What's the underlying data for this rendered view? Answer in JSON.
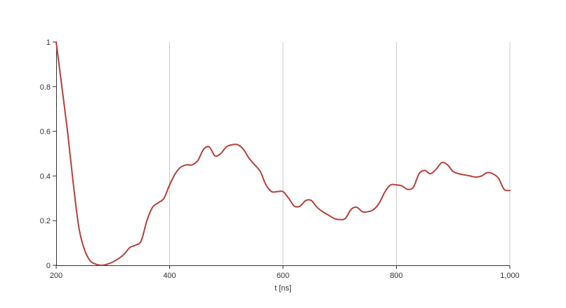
{
  "chart_data": {
    "type": "line",
    "xlabel": "t [ns]",
    "ylabel": "",
    "xlim": [
      200,
      1000
    ],
    "ylim": [
      0,
      1
    ],
    "x_ticks": [
      200,
      400,
      600,
      800,
      1000
    ],
    "x_tick_labels": [
      "200",
      "400",
      "600",
      "800",
      "1,000"
    ],
    "y_ticks": [
      0,
      0.2,
      0.4,
      0.6,
      0.8,
      1
    ],
    "y_tick_labels": [
      "0",
      "0.2",
      "0.4",
      "0.6",
      "0.8",
      "1"
    ],
    "grid": {
      "vertical": true,
      "horizontal": false
    },
    "legend": "none",
    "colors": {
      "line": "#b5403a",
      "grid": "#cccccc",
      "axis": "#333333"
    },
    "series": [
      {
        "x": [
          200,
          210,
          220,
          230,
          240,
          250,
          260,
          270,
          280,
          290,
          300,
          310,
          320,
          330,
          340,
          350,
          360,
          370,
          380,
          390,
          400,
          410,
          420,
          430,
          440,
          450,
          460,
          470,
          480,
          490,
          500,
          510,
          520,
          530,
          540,
          550,
          560,
          570,
          580,
          590,
          600,
          610,
          620,
          630,
          640,
          650,
          660,
          670,
          680,
          690,
          700,
          710,
          720,
          730,
          740,
          750,
          760,
          770,
          780,
          790,
          800,
          810,
          820,
          830,
          840,
          850,
          860,
          870,
          880,
          890,
          900,
          910,
          920,
          930,
          940,
          950,
          960,
          970,
          980,
          990,
          1000
        ],
        "y": [
          1.0,
          0.8,
          0.6,
          0.37,
          0.17,
          0.07,
          0.02,
          0.005,
          0.0,
          0.005,
          0.015,
          0.03,
          0.05,
          0.08,
          0.09,
          0.11,
          0.2,
          0.26,
          0.28,
          0.3,
          0.36,
          0.41,
          0.44,
          0.45,
          0.45,
          0.47,
          0.52,
          0.53,
          0.49,
          0.5,
          0.53,
          0.54,
          0.54,
          0.52,
          0.48,
          0.45,
          0.42,
          0.36,
          0.33,
          0.33,
          0.33,
          0.3,
          0.265,
          0.265,
          0.29,
          0.29,
          0.26,
          0.24,
          0.225,
          0.21,
          0.205,
          0.21,
          0.25,
          0.26,
          0.24,
          0.24,
          0.25,
          0.28,
          0.33,
          0.36,
          0.36,
          0.355,
          0.34,
          0.35,
          0.41,
          0.425,
          0.41,
          0.43,
          0.46,
          0.45,
          0.42,
          0.41,
          0.405,
          0.4,
          0.395,
          0.4,
          0.415,
          0.41,
          0.39,
          0.34,
          0.335
        ]
      }
    ]
  }
}
